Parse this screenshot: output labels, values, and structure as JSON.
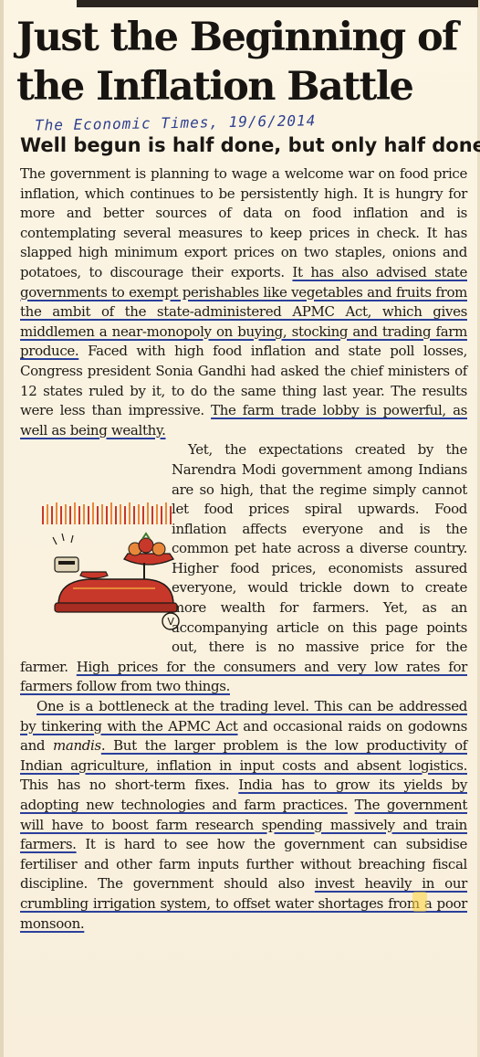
{
  "article": {
    "headline_line1": "Just the Beginning of",
    "headline_line2": "the Inflation Battle",
    "handwritten_note": "The Economic Times, 19/6/2014",
    "subhead": "Well begun is half done, but only half done",
    "p1": {
      "a": "The government is planning to wage a welcome war on food price inflation, which continues to be persistently high. It is hungry for more and better sources of data on food inflation and is contemplating several measures to keep prices in check. It has slapped high minimum export prices on two staples, onions and potatoes, to discourage their exports. ",
      "b": "It has also advised state governments to exempt perishables like vegetables and fruits from the ambit of the state-administered APMC Act, which gives middlemen a near-monopoly on buying, stocking and trading farm produce.",
      "c": " Faced with high food inflation and state poll losses, Congress president Sonia Gandhi had asked the chief ministers of 12 states ruled by it, to do the same thing last year. The results were less than impressive. ",
      "d": "The farm trade lobby is powerful, as well as being wealthy."
    },
    "p2": {
      "a": "Yet, the expectations created by the Narendra Modi government among Indians are so high, that the regime simply cannot let food prices spiral upwards. Food inflation affects everyone and is the common pet hate across a diverse country. Higher food prices, economists assured everyone, would trickle down to create more wealth for farmers. Yet, as an accompanying article on this page points out, there is no massive price for the farmer. ",
      "b": "High prices for the consumers and very low rates for farmers follow from two things."
    },
    "p3": {
      "a": "One is a bottleneck at the trading level. This can be addressed by tinkering with the APMC Act",
      "b": " and occasional raids on godowns and ",
      "c": "mandis",
      "d": ". But the larger problem is the low productivity of Indian agriculture, inflation in input costs and absent logistics.",
      "e": " This has no short-term fixes. ",
      "f": "India has to grow its yields by adopting new technologies and farm practices.",
      "g": " ",
      "h": "The government will have to boost farm research spending massively and train farmers.",
      "i": " It is hard to see how the government can subsidise fertiliser and other farm inputs further without breaching fiscal discipline. The government should also ",
      "j": "invest heavily in our crumbling irrigation system, to offset water shortages from a poor monsoon."
    },
    "illustration_mark": "V"
  },
  "colors": {
    "paper": "#fbf3e0",
    "ink": "#1d1a16",
    "pen": "#2b3f9b",
    "highlighter": "#ffd63c",
    "illustration_red": "#c8382a",
    "illustration_orange": "#e8873a"
  }
}
